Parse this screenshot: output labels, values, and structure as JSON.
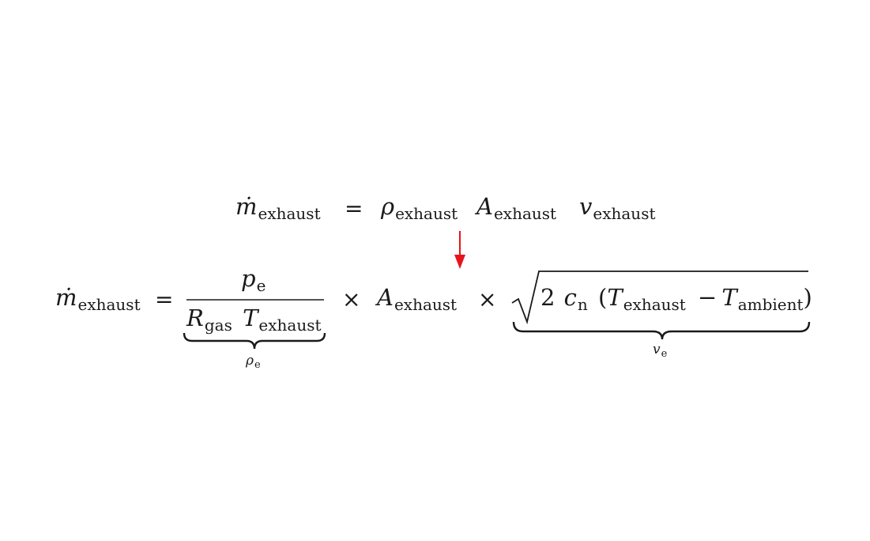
{
  "equation_top": {
    "lhs": {
      "symbol": "ṁ",
      "sub": "exhaust"
    },
    "equals": "=",
    "rho": {
      "symbol": "ρ",
      "sub": "exhaust"
    },
    "area": {
      "symbol": "A",
      "sub": "exhaust"
    },
    "velocity": {
      "symbol": "v",
      "sub": "exhaust"
    }
  },
  "arrow": {
    "color": "#e8141b"
  },
  "equation_bottom": {
    "lhs": {
      "symbol": "ṁ",
      "sub": "exhaust"
    },
    "equals": "=",
    "fraction": {
      "numerator": {
        "symbol": "p",
        "sub": "e"
      },
      "denominator": {
        "r": {
          "symbol": "R",
          "sub": "gas"
        },
        "t": {
          "symbol": "T",
          "sub": "exhaust"
        }
      }
    },
    "brace1_label": {
      "symbol": "ρ",
      "sub": "e"
    },
    "times1": "×",
    "area": {
      "symbol": "A",
      "sub": "exhaust"
    },
    "times2": "×",
    "sqrt": {
      "two": "2",
      "cp": {
        "symbol": "c",
        "sub": "n"
      },
      "lparen": "(",
      "t1": {
        "symbol": "T",
        "sub": "exhaust"
      },
      "minus": "−",
      "t2": {
        "symbol": "T",
        "sub": "ambient"
      },
      "rparen": ")"
    },
    "brace2_label": {
      "symbol": "v",
      "sub": "e"
    }
  }
}
